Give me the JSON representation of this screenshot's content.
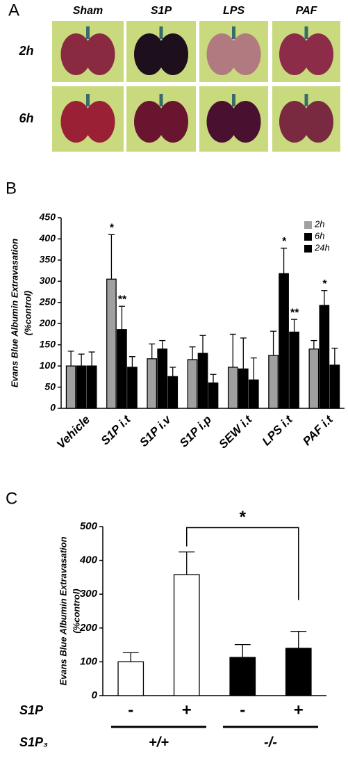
{
  "panel_labels": [
    "A",
    "B",
    "C"
  ],
  "panel_a": {
    "columns": [
      "Sham",
      "S1P",
      "LPS",
      "PAF"
    ],
    "rows": [
      "2h",
      "6h"
    ]
  },
  "chart_data": [
    {
      "type": "bar",
      "ylabel": [
        "Evans Blue Albumin Extravasation",
        "(%control)"
      ],
      "categories": [
        "Vehicle",
        "S1P i.t",
        "S1P i.v",
        "S1P i.p",
        "SEW i.t",
        "LPS i.t",
        "PAF i.t"
      ],
      "series": [
        {
          "name": "2h",
          "color": "#a0a0a0",
          "values": [
            100,
            305,
            117,
            115,
            97,
            125,
            140
          ],
          "errors": [
            35,
            105,
            35,
            30,
            78,
            57,
            20
          ],
          "significance": [
            null,
            "*",
            null,
            null,
            null,
            null,
            null
          ]
        },
        {
          "name": "6h",
          "color": "#000000",
          "values": [
            100,
            186,
            140,
            130,
            93,
            318,
            243
          ],
          "errors": [
            28,
            55,
            20,
            42,
            73,
            60,
            35
          ],
          "significance": [
            null,
            "**",
            null,
            null,
            null,
            "*",
            "*"
          ]
        },
        {
          "name": "24h",
          "color": "#000000",
          "values": [
            100,
            97,
            75,
            60,
            67,
            180,
            102
          ],
          "errors": [
            33,
            25,
            22,
            20,
            52,
            30,
            40
          ],
          "significance": [
            null,
            null,
            null,
            null,
            null,
            "**",
            null
          ]
        }
      ],
      "ylim": [
        0,
        450
      ],
      "yticks": [
        0,
        50,
        100,
        150,
        200,
        250,
        300,
        350,
        400,
        450
      ],
      "legend": "top-right"
    },
    {
      "type": "bar",
      "ylabel": [
        "Evans Blue Albumin Extravasation",
        "(%control)"
      ],
      "categories": [
        "-",
        "+",
        "-",
        "+"
      ],
      "values": [
        100,
        358,
        113,
        140
      ],
      "errors": [
        27,
        67,
        38,
        50
      ],
      "colors": [
        "#ffffff",
        "#ffffff",
        "#000000",
        "#000000"
      ],
      "factor_labels": [
        "S1P",
        "S1P₃"
      ],
      "groups": [
        "+/+",
        "-/-"
      ],
      "significance_label": "*",
      "ylim": [
        0,
        500
      ],
      "yticks": [
        0,
        100,
        200,
        300,
        400,
        500
      ]
    }
  ]
}
